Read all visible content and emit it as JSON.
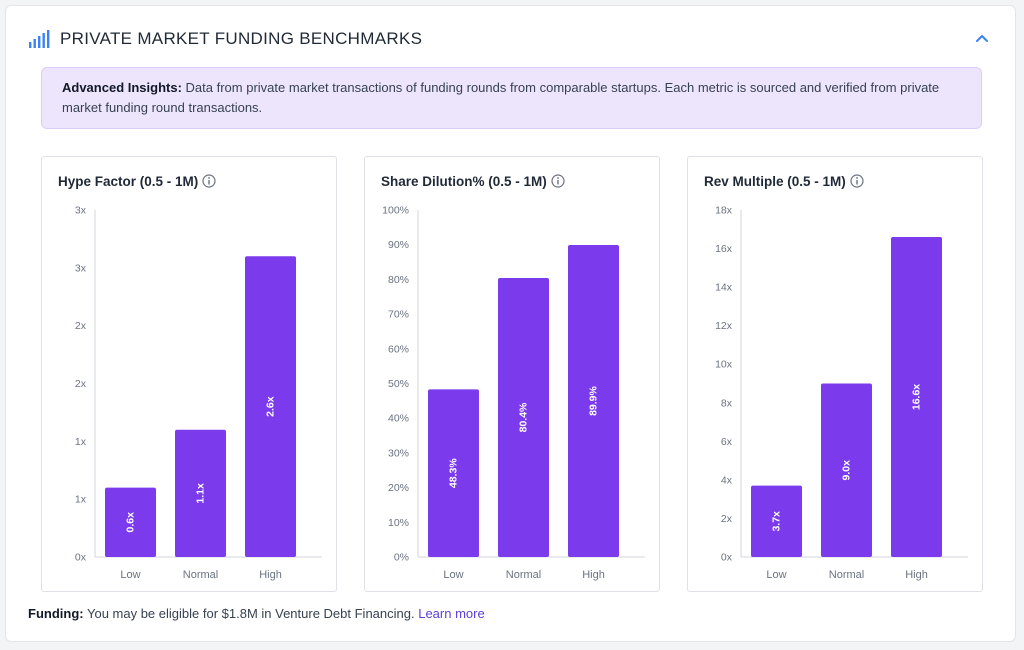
{
  "header": {
    "title": "PRIVATE MARKET FUNDING BENCHMARKS",
    "icon": "signal-bars-icon",
    "collapse_icon": "chevron-up-icon"
  },
  "insights": {
    "label": "Advanced Insights:",
    "text": "Data from private market transactions of funding rounds from comparable startups. Each metric is sourced and verified from private market funding round transactions."
  },
  "footer": {
    "label": "Funding:",
    "text": "You may be eligible for $1.8M in Venture Debt Financing.",
    "link": "Learn more"
  },
  "colors": {
    "bar": "#7c3aed",
    "accent": "#3b82f6",
    "link": "#5b3fd6"
  },
  "chart_data": [
    {
      "type": "bar",
      "title": "Hype Factor (0.5 - 1M)",
      "categories": [
        "Low",
        "Normal",
        "High"
      ],
      "values": [
        0.6,
        1.1,
        2.6
      ],
      "value_labels": [
        "0.6x",
        "1.1x",
        "2.6x"
      ],
      "ylim": [
        0,
        3
      ],
      "y_ticks": [
        "0x",
        "1x",
        "1x",
        "2x",
        "2x",
        "3x",
        "3x"
      ],
      "grid": false
    },
    {
      "type": "bar",
      "title": "Share Dilution% (0.5 - 1M)",
      "categories": [
        "Low",
        "Normal",
        "High"
      ],
      "values": [
        48.3,
        80.4,
        89.9
      ],
      "value_labels": [
        "48.3%",
        "80.4%",
        "89.9%"
      ],
      "ylim": [
        0,
        100
      ],
      "y_ticks": [
        "0%",
        "10%",
        "20%",
        "30%",
        "40%",
        "50%",
        "60%",
        "70%",
        "80%",
        "90%",
        "100%"
      ],
      "grid": false
    },
    {
      "type": "bar",
      "title": "Rev Multiple (0.5 - 1M)",
      "categories": [
        "Low",
        "Normal",
        "High"
      ],
      "values": [
        3.7,
        9.0,
        16.6
      ],
      "value_labels": [
        "3.7x",
        "9.0x",
        "16.6x"
      ],
      "ylim": [
        0,
        18
      ],
      "y_ticks": [
        "0x",
        "2x",
        "4x",
        "6x",
        "8x",
        "10x",
        "12x",
        "14x",
        "16x",
        "18x"
      ],
      "grid": false
    }
  ]
}
